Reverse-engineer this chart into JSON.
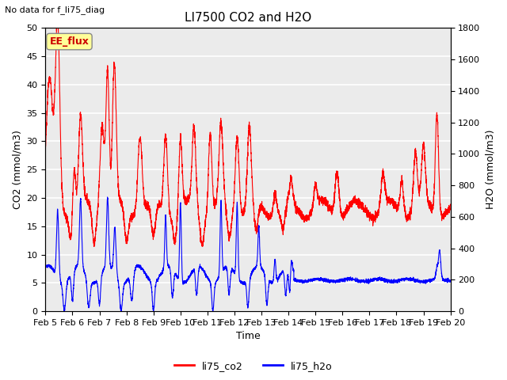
{
  "title": "LI7500 CO2 and H2O",
  "subtitle": "No data for f_li75_diag",
  "xlabel": "Time",
  "ylabel_left": "CO2 (mmol/m3)",
  "ylabel_right": "H2O (mmol/m3)",
  "ylim_left": [
    0,
    50
  ],
  "ylim_right": [
    0,
    1800
  ],
  "yticks_left": [
    0,
    5,
    10,
    15,
    20,
    25,
    30,
    35,
    40,
    45,
    50
  ],
  "yticks_right": [
    0,
    200,
    400,
    600,
    800,
    1000,
    1200,
    1400,
    1600,
    1800
  ],
  "annotation_text": "EE_flux",
  "annotation_color": "#cc0000",
  "annotation_bg": "#ffff99",
  "plot_bg": "#ebebeb",
  "grid_color": "#ffffff",
  "co2_color": "red",
  "h2o_color": "blue",
  "line_width": 0.8,
  "figsize": [
    6.4,
    4.8
  ],
  "dpi": 100
}
